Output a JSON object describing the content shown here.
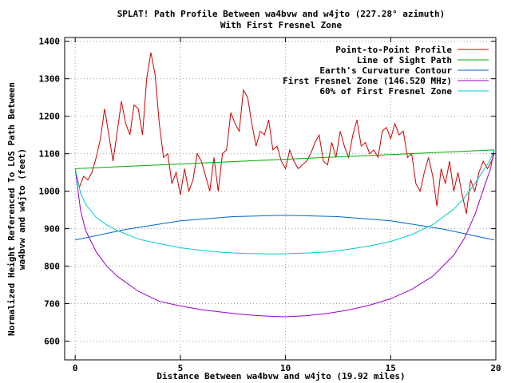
{
  "chart_data": {
    "type": "line",
    "title": "SPLAT! Path Profile Between wa4bvw and w4jto (227.28° azimuth)",
    "subtitle": "With First Fresnel Zone",
    "xlabel": "Distance Between wa4bvw and w4jto (19.92 miles)",
    "ylabel_line1": "Normalized Height Referenced To LOS Path Between",
    "ylabel_line2": "wa4bvw and w4jto (feet)",
    "xlim": [
      -0.5,
      20
    ],
    "ylim": [
      550,
      1410
    ],
    "xticks": [
      0,
      5,
      10,
      15,
      20
    ],
    "yticks": [
      600,
      700,
      800,
      900,
      1000,
      1100,
      1200,
      1300,
      1400
    ],
    "grid": true,
    "legend_position": "top-right",
    "series": [
      {
        "name": "Point-to-Point Profile",
        "color": "#cc0000",
        "x": [
          0,
          0.2,
          0.4,
          0.6,
          0.8,
          1.0,
          1.2,
          1.4,
          1.6,
          1.8,
          2.0,
          2.2,
          2.4,
          2.6,
          2.8,
          3.0,
          3.2,
          3.4,
          3.6,
          3.8,
          4.0,
          4.2,
          4.4,
          4.6,
          4.8,
          5.0,
          5.2,
          5.4,
          5.6,
          5.8,
          6.0,
          6.2,
          6.4,
          6.6,
          6.8,
          7.0,
          7.2,
          7.4,
          7.6,
          7.8,
          8.0,
          8.2,
          8.4,
          8.6,
          8.8,
          9.0,
          9.2,
          9.4,
          9.6,
          9.8,
          10.0,
          10.2,
          10.4,
          10.6,
          10.8,
          11.0,
          11.2,
          11.4,
          11.6,
          11.8,
          12.0,
          12.2,
          12.4,
          12.6,
          12.8,
          13.0,
          13.2,
          13.4,
          13.6,
          13.8,
          14.0,
          14.2,
          14.4,
          14.6,
          14.8,
          15.0,
          15.2,
          15.4,
          15.6,
          15.8,
          16.0,
          16.2,
          16.4,
          16.6,
          16.8,
          17.0,
          17.2,
          17.4,
          17.6,
          17.8,
          18.0,
          18.2,
          18.4,
          18.6,
          18.8,
          19.0,
          19.2,
          19.4,
          19.6,
          19.8,
          19.92
        ],
        "y": [
          1060,
          1010,
          1040,
          1030,
          1050,
          1090,
          1140,
          1220,
          1150,
          1080,
          1160,
          1240,
          1180,
          1150,
          1230,
          1220,
          1150,
          1300,
          1370,
          1310,
          1180,
          1090,
          1100,
          1020,
          1050,
          990,
          1060,
          1000,
          1030,
          1100,
          1080,
          1040,
          1000,
          1090,
          1000,
          1100,
          1110,
          1210,
          1180,
          1160,
          1270,
          1250,
          1180,
          1120,
          1160,
          1150,
          1190,
          1110,
          1120,
          1080,
          1060,
          1110,
          1080,
          1060,
          1070,
          1080,
          1100,
          1130,
          1150,
          1080,
          1070,
          1130,
          1090,
          1160,
          1120,
          1090,
          1150,
          1190,
          1120,
          1130,
          1100,
          1110,
          1090,
          1160,
          1170,
          1140,
          1180,
          1150,
          1160,
          1090,
          1100,
          1020,
          1000,
          1050,
          1090,
          1040,
          960,
          1060,
          1020,
          1080,
          1000,
          1050,
          990,
          940,
          1030,
          1000,
          1050,
          1080,
          1060,
          1080,
          1100
        ]
      },
      {
        "name": "Line of Sight Path",
        "color": "#00aa00",
        "x": [
          0,
          19.92
        ],
        "y": [
          1060,
          1110
        ]
      },
      {
        "name": "Earth's Curvature Contour",
        "color": "#0066cc",
        "x": [
          0,
          2.5,
          5,
          7.5,
          9.96,
          12.5,
          15,
          17.5,
          19.92
        ],
        "y": [
          870,
          899,
          921,
          932,
          936,
          932,
          921,
          899,
          870
        ]
      },
      {
        "name": "First Fresnel Zone (146.520 MHz)",
        "color": "#9900cc",
        "x": [
          0,
          0.25,
          0.5,
          1,
          1.5,
          2,
          3,
          4,
          5,
          6,
          7,
          8,
          9,
          9.96,
          11,
          12,
          13,
          14,
          15,
          16,
          17,
          18,
          18.5,
          19,
          19.5,
          19.75,
          19.92
        ],
        "y": [
          1060,
          950,
          895,
          838,
          800,
          773,
          733,
          706,
          694,
          684,
          677,
          671,
          667,
          665,
          668,
          674,
          683,
          696,
          713,
          738,
          773,
          829,
          874,
          937,
          1020,
          1060,
          1110
        ]
      },
      {
        "name": "60% of First Fresnel Zone",
        "color": "#00cccc",
        "x": [
          0,
          0.25,
          0.5,
          1,
          1.5,
          2,
          3,
          4,
          5,
          6,
          7,
          8,
          9,
          9.96,
          11,
          12,
          13,
          14,
          15,
          16,
          17,
          18,
          18.5,
          19,
          19.5,
          19.75,
          19.92
        ],
        "y": [
          1060,
          995,
          965,
          930,
          910,
          895,
          872,
          860,
          849,
          842,
          837,
          834,
          833,
          833,
          835,
          838,
          845,
          854,
          866,
          884,
          911,
          952,
          982,
          1020,
          1063,
          1085,
          1110
        ]
      }
    ]
  }
}
